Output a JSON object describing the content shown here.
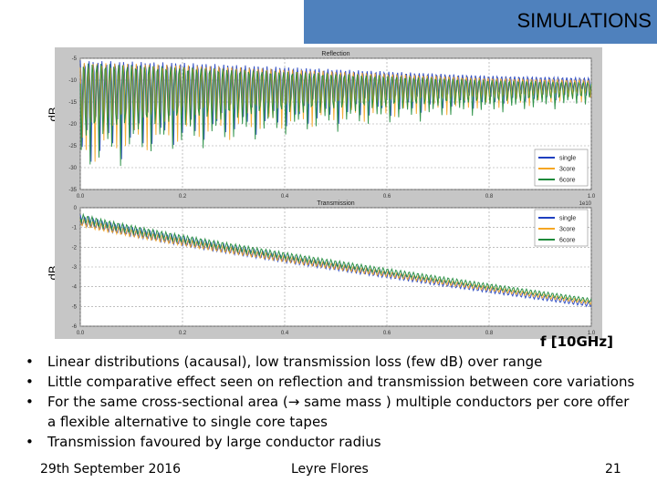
{
  "slide": {
    "title": "SIMULATIONS",
    "axis_ylabel": "dB",
    "xunit_label": "f [10GHz]"
  },
  "chart_data": [
    {
      "type": "line",
      "title": "Reflection",
      "xlabel": "",
      "ylabel": "dB",
      "xlim": [
        0.0,
        1.0
      ],
      "ylim": [
        -35,
        -5
      ],
      "xticks": [
        "0.0",
        "0.2",
        "0.4",
        "0.6",
        "0.8",
        "1.0"
      ],
      "yticks": [
        "-5",
        "-10",
        "-15",
        "-20",
        "-25",
        "-30",
        "-35"
      ],
      "x_multiplier": "1e10",
      "grid": true,
      "legend_position": "lower-right",
      "series": [
        {
          "name": "single",
          "color": "#1f3fbf",
          "upper": [
            -5.5,
            -6,
            -7,
            -8,
            -9,
            -9.5
          ],
          "lower_start": -33,
          "lower_end": -14,
          "period": 0.0085
        },
        {
          "name": "3core",
          "color": "#f5a623",
          "upper": [
            -6,
            -6.5,
            -7.5,
            -8.5,
            -9.5,
            -10
          ],
          "lower_start": -32,
          "lower_end": -15,
          "period": 0.0085
        },
        {
          "name": "6core",
          "color": "#1e8a3a",
          "upper": [
            -6,
            -7,
            -8,
            -9,
            -10,
            -10.5
          ],
          "lower_start": -34,
          "lower_end": -16,
          "period": 0.0085
        }
      ]
    },
    {
      "type": "line",
      "title": "Transmission",
      "xlabel": "",
      "ylabel": "dB",
      "xlim": [
        0.0,
        1.0
      ],
      "ylim": [
        -6,
        0
      ],
      "xticks": [
        "0.0",
        "0.2",
        "0.4",
        "0.6",
        "0.8",
        "1.0"
      ],
      "yticks": [
        "0",
        "-1",
        "-2",
        "-3",
        "-4",
        "-5",
        "-6"
      ],
      "grid": true,
      "legend_position": "upper-right",
      "series": [
        {
          "name": "single",
          "color": "#1f3fbf",
          "start": -0.6,
          "end": -4.9,
          "ripple": 0.25,
          "period": 0.0085
        },
        {
          "name": "3core",
          "color": "#f5a623",
          "start": -0.7,
          "end": -4.8,
          "ripple": 0.2,
          "period": 0.0085
        },
        {
          "name": "6core",
          "color": "#1e8a3a",
          "start": -0.5,
          "end": -4.7,
          "ripple": 0.22,
          "period": 0.0085
        }
      ]
    }
  ],
  "bullets": [
    "Linear distributions (acausal), low transmission loss (few dB) over range",
    "Little comparative effect seen on reflection and transmission between core variations",
    "For the same cross-sectional area (→ same mass ) multiple conductors per core offer a flexible alternative to single core tapes",
    "Transmission favoured by large conductor radius"
  ],
  "footer": {
    "date": "29th September 2016",
    "author": "Leyre Flores",
    "page": "21"
  }
}
